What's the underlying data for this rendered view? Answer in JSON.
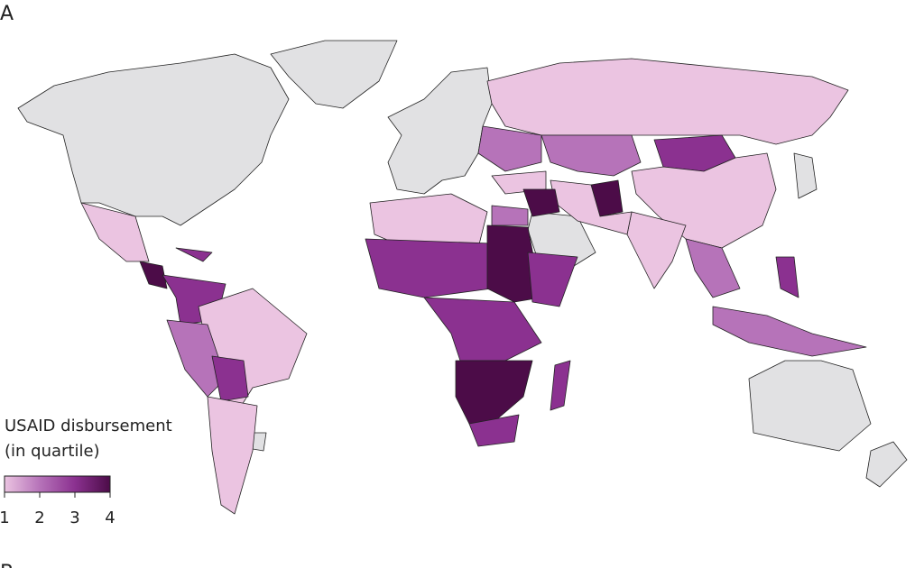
{
  "panel_label": "A",
  "next_panel_label": "B",
  "legend": {
    "title_lines": [
      "USAID disbursement",
      "(in quartile)"
    ],
    "ticks": [
      1,
      2,
      3,
      4
    ],
    "colors": [
      "#ebc4e1",
      "#b673b9",
      "#8b3190",
      "#4c0c48"
    ]
  },
  "map": {
    "no_data_color": "#e1e1e3",
    "quartiles": [
      1,
      2,
      3,
      1,
      1,
      4,
      1,
      2,
      1,
      4,
      2,
      2,
      3,
      1,
      4,
      3,
      3,
      1,
      2,
      3,
      1,
      1,
      3,
      4,
      3,
      3,
      4,
      3,
      3,
      2
    ]
  }
}
